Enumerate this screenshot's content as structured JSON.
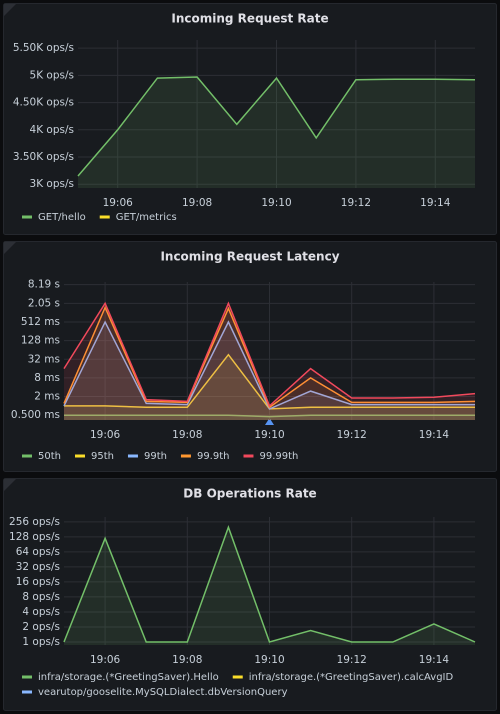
{
  "chart_data": [
    {
      "type": "line",
      "title": "Incoming Request Rate",
      "categories": [
        null,
        "19:06",
        null,
        "19:08",
        null,
        "19:10",
        null,
        "19:12",
        null,
        "19:14",
        null
      ],
      "ylim": [
        2930,
        5650
      ],
      "yticks": [
        {
          "value": 3000,
          "label": "3K ops/s"
        },
        {
          "value": 3500,
          "label": "3.50K ops/s"
        },
        {
          "value": 4000,
          "label": "4K ops/s"
        },
        {
          "value": 4500,
          "label": "4.50K ops/s"
        },
        {
          "value": 5000,
          "label": "5K ops/s"
        },
        {
          "value": 5500,
          "label": "5.50K ops/s"
        }
      ],
      "yscale": "linear",
      "grid": true,
      "legend": "bottom",
      "series": [
        {
          "name": "GET/hello",
          "color": "#73bf69",
          "values": [
            3150,
            4000,
            4950,
            4970,
            4100,
            4950,
            3850,
            4920,
            4930,
            4930,
            4920
          ]
        },
        {
          "name": "GET/metrics",
          "color": "#fade2a",
          "values": [
            null,
            null,
            null,
            null,
            null,
            null,
            null,
            null,
            null,
            null,
            null
          ]
        }
      ]
    },
    {
      "type": "line",
      "title": "Incoming Request Latency",
      "categories": [
        null,
        "19:06",
        null,
        "19:08",
        null,
        "19:10",
        null,
        "19:12",
        null,
        "19:14",
        null
      ],
      "ylim": [
        0.35,
        10000
      ],
      "yticks": [
        {
          "value": 0.5,
          "label": "0.500 ms"
        },
        {
          "value": 2,
          "label": "2 ms"
        },
        {
          "value": 8,
          "label": "8 ms"
        },
        {
          "value": 32,
          "label": "32 ms"
        },
        {
          "value": 128,
          "label": "128 ms"
        },
        {
          "value": 512,
          "label": "512 ms"
        },
        {
          "value": 2048,
          "label": "2.05 s"
        },
        {
          "value": 8192,
          "label": "8.19 s"
        }
      ],
      "yscale": "log",
      "grid": true,
      "legend": "bottom",
      "series": [
        {
          "name": "50th",
          "color": "#73bf69",
          "values": [
            0.5,
            0.5,
            0.5,
            0.5,
            0.5,
            0.45,
            0.5,
            0.5,
            0.5,
            0.5,
            0.5
          ]
        },
        {
          "name": "95th",
          "color": "#fade2a",
          "values": [
            1,
            1,
            0.9,
            0.9,
            45,
            0.8,
            0.9,
            0.9,
            0.9,
            0.9,
            0.9
          ]
        },
        {
          "name": "99th",
          "color": "#8ab8ff",
          "values": [
            1,
            512,
            1.2,
            1.1,
            512,
            0.8,
            3,
            1.1,
            1.1,
            1.1,
            1.1
          ]
        },
        {
          "name": "99.9th",
          "color": "#ff9830",
          "values": [
            1.2,
            1500,
            1.4,
            1.3,
            1400,
            0.9,
            8,
            1.3,
            1.3,
            1.3,
            1.4
          ]
        },
        {
          "name": "99.99th",
          "color": "#f2495c",
          "values": [
            16,
            2048,
            1.6,
            1.4,
            2048,
            1,
            16,
            1.8,
            1.8,
            1.9,
            2.5
          ]
        }
      ]
    },
    {
      "type": "line",
      "title": "DB Operations Rate",
      "categories": [
        null,
        "19:06",
        null,
        "19:08",
        null,
        "19:10",
        null,
        "19:12",
        null,
        "19:14",
        null
      ],
      "ylim": [
        0.87,
        320
      ],
      "yticks": [
        {
          "value": 1,
          "label": "1 ops/s"
        },
        {
          "value": 2,
          "label": "2 ops/s"
        },
        {
          "value": 4,
          "label": "4 ops/s"
        },
        {
          "value": 8,
          "label": "8 ops/s"
        },
        {
          "value": 16,
          "label": "16 ops/s"
        },
        {
          "value": 32,
          "label": "32 ops/s"
        },
        {
          "value": 64,
          "label": "64 ops/s"
        },
        {
          "value": 128,
          "label": "128 ops/s"
        },
        {
          "value": 256,
          "label": "256 ops/s"
        }
      ],
      "yscale": "log",
      "grid": true,
      "legend": "bottom",
      "series": [
        {
          "name": "infra/storage.(*GreetingSaver).Hello",
          "color": "#73bf69",
          "values": [
            1,
            120,
            1,
            1,
            200,
            1,
            1.7,
            1,
            1,
            2.3,
            1
          ]
        },
        {
          "name": "infra/storage.(*GreetingSaver).calcAvgID",
          "color": "#fade2a",
          "values": [
            null,
            null,
            null,
            null,
            null,
            null,
            null,
            null,
            null,
            null,
            null
          ]
        },
        {
          "name": "vearutop/gooselite.MySQLDialect.dbVersionQuery",
          "color": "#8ab8ff",
          "values": [
            null,
            null,
            null,
            null,
            null,
            null,
            null,
            null,
            null,
            null,
            null
          ]
        }
      ]
    }
  ]
}
